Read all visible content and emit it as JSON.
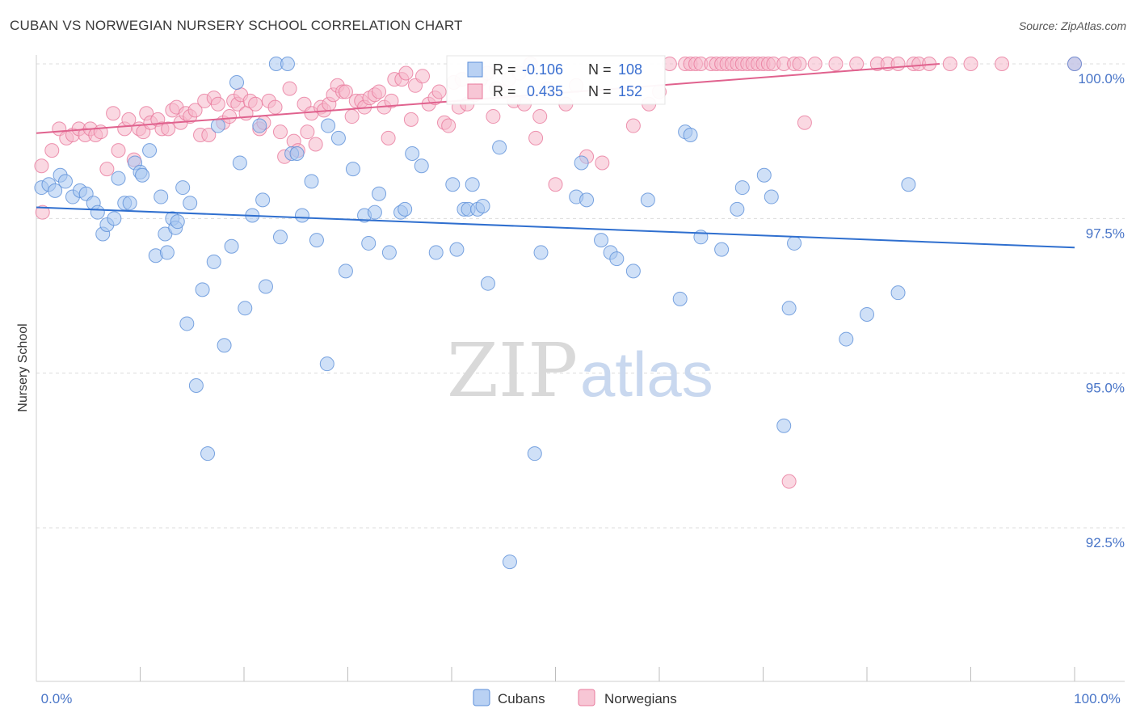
{
  "title": "CUBAN VS NORWEGIAN NURSERY SCHOOL CORRELATION CHART",
  "source": "Source: ZipAtlas.com",
  "watermark": {
    "zip": "ZIP",
    "atlas": "atlas"
  },
  "colors": {
    "cubans_fill": "#a8c6f0",
    "cubans_stroke": "#5b8ed8",
    "cubans_line": "#2f6fcf",
    "norwegians_fill": "#f5b8cb",
    "norwegians_stroke": "#e8799c",
    "norwegians_line": "#e0628e",
    "grid": "#dcdcdc",
    "axis_text": "#4a76c8"
  },
  "stats": {
    "cubans": {
      "r_label": "R =",
      "r_value": "-0.106",
      "n_label": "N =",
      "n_value": "108"
    },
    "norwegians": {
      "r_label": "R =",
      "r_value": "0.435",
      "n_label": "N =",
      "n_value": "152"
    }
  },
  "chart_data": {
    "type": "scatter",
    "title": "CUBAN VS NORWEGIAN NURSERY SCHOOL CORRELATION CHART",
    "xlabel": "",
    "ylabel": "Nursery School",
    "xlim": [
      0,
      100
    ],
    "ylim": [
      90.3,
      100.4
    ],
    "x_tick_labels": [
      "0.0%",
      "100.0%"
    ],
    "y_ticks": [
      {
        "value": 100.0,
        "label": "100.0%"
      },
      {
        "value": 97.5,
        "label": "97.5%"
      },
      {
        "value": 95.0,
        "label": "95.0%"
      },
      {
        "value": 92.5,
        "label": "92.5%"
      }
    ],
    "grid": true,
    "legend_position": "bottom-center",
    "series": [
      {
        "name": "Cubans",
        "trend": {
          "x": [
            0,
            100
          ],
          "y": [
            97.68,
            97.03
          ]
        },
        "points": [
          [
            0.5,
            98.0
          ],
          [
            1.2,
            98.05
          ],
          [
            1.8,
            97.95
          ],
          [
            2.3,
            98.2
          ],
          [
            2.8,
            98.1
          ],
          [
            3.5,
            97.85
          ],
          [
            4.2,
            97.95
          ],
          [
            4.8,
            97.9
          ],
          [
            5.5,
            97.75
          ],
          [
            5.9,
            97.6
          ],
          [
            6.4,
            97.25
          ],
          [
            6.8,
            97.4
          ],
          [
            7.5,
            97.5
          ],
          [
            7.9,
            98.15
          ],
          [
            8.5,
            97.75
          ],
          [
            9.0,
            97.75
          ],
          [
            9.5,
            98.4
          ],
          [
            10.0,
            98.25
          ],
          [
            10.2,
            98.2
          ],
          [
            10.9,
            98.6
          ],
          [
            11.5,
            96.9
          ],
          [
            12.0,
            97.85
          ],
          [
            12.4,
            97.25
          ],
          [
            12.6,
            96.95
          ],
          [
            13.1,
            97.5
          ],
          [
            13.4,
            97.35
          ],
          [
            13.6,
            97.45
          ],
          [
            14.1,
            98.0
          ],
          [
            14.5,
            95.8
          ],
          [
            14.8,
            97.75
          ],
          [
            15.4,
            94.8
          ],
          [
            16.0,
            96.35
          ],
          [
            16.5,
            93.7
          ],
          [
            17.1,
            96.8
          ],
          [
            17.5,
            99.0
          ],
          [
            18.1,
            95.45
          ],
          [
            18.8,
            97.05
          ],
          [
            19.3,
            99.7
          ],
          [
            19.6,
            98.4
          ],
          [
            20.1,
            96.05
          ],
          [
            20.8,
            97.55
          ],
          [
            21.5,
            99.0
          ],
          [
            21.8,
            97.8
          ],
          [
            22.1,
            96.4
          ],
          [
            23.1,
            100.0
          ],
          [
            23.5,
            97.2
          ],
          [
            24.2,
            100.0
          ],
          [
            24.6,
            98.55
          ],
          [
            25.1,
            98.55
          ],
          [
            25.6,
            97.55
          ],
          [
            26.5,
            98.1
          ],
          [
            27.0,
            97.15
          ],
          [
            28.0,
            95.15
          ],
          [
            28.1,
            99.0
          ],
          [
            29.1,
            98.8
          ],
          [
            29.8,
            96.65
          ],
          [
            30.5,
            98.3
          ],
          [
            31.6,
            97.55
          ],
          [
            32.0,
            97.1
          ],
          [
            32.6,
            97.6
          ],
          [
            33.0,
            97.9
          ],
          [
            34.0,
            96.95
          ],
          [
            35.1,
            97.6
          ],
          [
            35.5,
            97.65
          ],
          [
            36.2,
            98.55
          ],
          [
            37.1,
            98.35
          ],
          [
            38.5,
            96.95
          ],
          [
            40.1,
            98.05
          ],
          [
            40.5,
            97.0
          ],
          [
            41.2,
            97.65
          ],
          [
            41.6,
            97.65
          ],
          [
            42.0,
            98.05
          ],
          [
            42.5,
            97.65
          ],
          [
            43.0,
            97.7
          ],
          [
            43.5,
            96.45
          ],
          [
            44.6,
            98.65
          ],
          [
            45.6,
            91.95
          ],
          [
            48.0,
            93.7
          ],
          [
            48.6,
            96.95
          ],
          [
            52.0,
            97.85
          ],
          [
            52.5,
            98.4
          ],
          [
            53.0,
            97.8
          ],
          [
            54.4,
            97.15
          ],
          [
            55.3,
            96.95
          ],
          [
            55.9,
            96.85
          ],
          [
            57.5,
            96.65
          ],
          [
            58.9,
            97.8
          ],
          [
            62.0,
            96.2
          ],
          [
            62.5,
            98.9
          ],
          [
            63.0,
            98.85
          ],
          [
            64.0,
            97.2
          ],
          [
            66.0,
            97.0
          ],
          [
            67.5,
            97.65
          ],
          [
            68.0,
            98.0
          ],
          [
            70.1,
            98.2
          ],
          [
            70.8,
            97.85
          ],
          [
            72.0,
            94.15
          ],
          [
            72.5,
            96.05
          ],
          [
            73.0,
            97.1
          ],
          [
            78.0,
            95.55
          ],
          [
            80.0,
            95.95
          ],
          [
            83.0,
            96.3
          ],
          [
            84.0,
            98.05
          ],
          [
            100.0,
            100.0
          ]
        ]
      },
      {
        "name": "Norwegians",
        "trend": {
          "x": [
            0,
            87
          ],
          "y": [
            98.88,
            100.0
          ]
        },
        "points": [
          [
            0.5,
            98.35
          ],
          [
            0.6,
            97.6
          ],
          [
            1.5,
            98.6
          ],
          [
            2.2,
            98.95
          ],
          [
            2.9,
            98.8
          ],
          [
            3.5,
            98.85
          ],
          [
            4.1,
            98.95
          ],
          [
            4.7,
            98.85
          ],
          [
            5.2,
            98.95
          ],
          [
            5.7,
            98.85
          ],
          [
            6.2,
            98.9
          ],
          [
            6.8,
            98.3
          ],
          [
            7.4,
            99.2
          ],
          [
            7.9,
            98.6
          ],
          [
            8.5,
            98.95
          ],
          [
            8.9,
            99.1
          ],
          [
            9.4,
            98.45
          ],
          [
            9.9,
            98.95
          ],
          [
            10.3,
            98.9
          ],
          [
            10.6,
            99.2
          ],
          [
            11.0,
            99.05
          ],
          [
            11.7,
            99.1
          ],
          [
            12.1,
            98.95
          ],
          [
            12.7,
            98.95
          ],
          [
            13.1,
            99.25
          ],
          [
            13.5,
            99.3
          ],
          [
            13.9,
            99.05
          ],
          [
            14.4,
            99.2
          ],
          [
            14.8,
            99.15
          ],
          [
            15.3,
            99.25
          ],
          [
            15.8,
            98.85
          ],
          [
            16.2,
            99.4
          ],
          [
            16.6,
            98.85
          ],
          [
            17.1,
            99.45
          ],
          [
            17.5,
            99.35
          ],
          [
            18.0,
            99.05
          ],
          [
            18.6,
            99.15
          ],
          [
            19.0,
            99.4
          ],
          [
            19.4,
            99.35
          ],
          [
            19.7,
            99.5
          ],
          [
            20.2,
            99.2
          ],
          [
            20.6,
            99.4
          ],
          [
            21.1,
            99.35
          ],
          [
            21.5,
            98.95
          ],
          [
            21.9,
            99.05
          ],
          [
            22.4,
            99.4
          ],
          [
            23.0,
            99.3
          ],
          [
            23.5,
            98.9
          ],
          [
            23.9,
            98.5
          ],
          [
            24.4,
            99.6
          ],
          [
            24.8,
            98.75
          ],
          [
            25.2,
            98.6
          ],
          [
            25.8,
            99.35
          ],
          [
            26.1,
            98.9
          ],
          [
            26.5,
            99.2
          ],
          [
            26.9,
            98.7
          ],
          [
            27.4,
            99.3
          ],
          [
            27.7,
            99.25
          ],
          [
            28.2,
            99.35
          ],
          [
            28.6,
            99.5
          ],
          [
            29.0,
            99.65
          ],
          [
            29.5,
            99.55
          ],
          [
            29.8,
            99.55
          ],
          [
            30.4,
            99.15
          ],
          [
            30.8,
            99.4
          ],
          [
            31.3,
            99.4
          ],
          [
            31.6,
            99.3
          ],
          [
            32.1,
            99.45
          ],
          [
            32.6,
            99.5
          ],
          [
            33.0,
            99.55
          ],
          [
            33.5,
            99.3
          ],
          [
            33.9,
            98.8
          ],
          [
            34.2,
            99.4
          ],
          [
            34.5,
            99.75
          ],
          [
            35.2,
            99.75
          ],
          [
            35.6,
            99.85
          ],
          [
            36.1,
            99.1
          ],
          [
            36.5,
            99.65
          ],
          [
            37.2,
            99.8
          ],
          [
            37.8,
            99.35
          ],
          [
            38.4,
            99.45
          ],
          [
            38.8,
            99.55
          ],
          [
            39.3,
            99.05
          ],
          [
            39.7,
            99.0
          ],
          [
            40.2,
            99.7
          ],
          [
            40.7,
            99.3
          ],
          [
            41.0,
            99.75
          ],
          [
            41.5,
            99.35
          ],
          [
            42.2,
            99.5
          ],
          [
            42.8,
            99.75
          ],
          [
            43.4,
            99.85
          ],
          [
            44.0,
            99.15
          ],
          [
            44.3,
            99.6
          ],
          [
            45.0,
            99.55
          ],
          [
            45.5,
            99.75
          ],
          [
            46.0,
            99.4
          ],
          [
            46.5,
            99.85
          ],
          [
            47.0,
            99.35
          ],
          [
            47.6,
            100.0
          ],
          [
            48.1,
            98.8
          ],
          [
            48.5,
            99.15
          ],
          [
            49.2,
            99.6
          ],
          [
            50.0,
            98.05
          ],
          [
            51.0,
            99.35
          ],
          [
            52.0,
            99.65
          ],
          [
            53.0,
            98.5
          ],
          [
            54.5,
            98.4
          ],
          [
            57.5,
            99.0
          ],
          [
            59.0,
            99.35
          ],
          [
            60.0,
            99.55
          ],
          [
            61.0,
            100.0
          ],
          [
            62.5,
            100.0
          ],
          [
            63.0,
            100.0
          ],
          [
            63.5,
            100.0
          ],
          [
            64.0,
            100.0
          ],
          [
            65.0,
            100.0
          ],
          [
            65.5,
            100.0
          ],
          [
            66.0,
            100.0
          ],
          [
            66.5,
            100.0
          ],
          [
            67.0,
            100.0
          ],
          [
            67.5,
            100.0
          ],
          [
            68.0,
            100.0
          ],
          [
            68.5,
            100.0
          ],
          [
            69.0,
            100.0
          ],
          [
            69.5,
            100.0
          ],
          [
            70.0,
            100.0
          ],
          [
            70.5,
            100.0
          ],
          [
            71.0,
            100.0
          ],
          [
            72.0,
            100.0
          ],
          [
            72.5,
            93.25
          ],
          [
            73.0,
            100.0
          ],
          [
            73.5,
            100.0
          ],
          [
            74.0,
            99.05
          ],
          [
            75.0,
            100.0
          ],
          [
            77.0,
            100.0
          ],
          [
            79.0,
            100.0
          ],
          [
            81.0,
            100.0
          ],
          [
            82.0,
            100.0
          ],
          [
            83.0,
            100.0
          ],
          [
            84.5,
            100.0
          ],
          [
            85.0,
            100.0
          ],
          [
            86.0,
            100.0
          ],
          [
            88.0,
            100.0
          ],
          [
            90.0,
            100.0
          ],
          [
            93.0,
            100.0
          ],
          [
            100.0,
            100.0
          ]
        ]
      }
    ]
  }
}
